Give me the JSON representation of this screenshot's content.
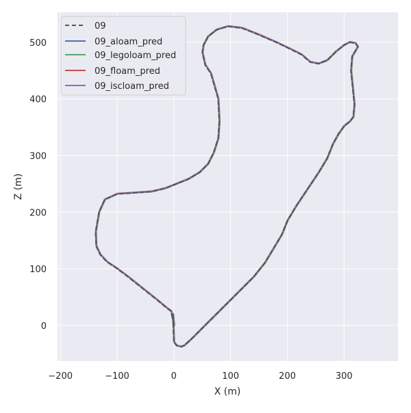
{
  "chart_data": {
    "type": "line",
    "title": "",
    "xlabel": "X (m)",
    "ylabel": "Z (m)",
    "xlim": [
      -205,
      395
    ],
    "ylim": [
      -63,
      553
    ],
    "xticks": [
      -200,
      -100,
      0,
      100,
      200,
      300
    ],
    "yticks": [
      0,
      100,
      200,
      300,
      400,
      500
    ],
    "grid": true,
    "legend_position": "top-left",
    "background_color": "#eaeaf2",
    "series": [
      {
        "name": "09",
        "style": "dashed",
        "color": "#555555",
        "x": [
          0,
          -2,
          0,
          5,
          12,
          18,
          30,
          50,
          80,
          110,
          140,
          160,
          175,
          190,
          200,
          215,
          235,
          255,
          270,
          280,
          290,
          300,
          310,
          316,
          318,
          315,
          312,
          314,
          320,
          324,
          320,
          310,
          300,
          285,
          270,
          255,
          240,
          225,
          205,
          180,
          150,
          120,
          95,
          75,
          60,
          52,
          50,
          55,
          65,
          78,
          80,
          78,
          70,
          60,
          45,
          25,
          5,
          -15,
          -40,
          -70,
          -100,
          -122,
          -132,
          -138,
          -137,
          -130,
          -118,
          -100,
          -80,
          -55,
          -30,
          -12,
          -5,
          0
        ],
        "y": [
          0,
          20,
          -30,
          -36,
          -38,
          -36,
          -25,
          -5,
          25,
          55,
          85,
          110,
          135,
          160,
          185,
          210,
          240,
          270,
          295,
          320,
          338,
          352,
          360,
          368,
          390,
          420,
          450,
          475,
          485,
          492,
          498,
          500,
          495,
          483,
          468,
          462,
          465,
          478,
          488,
          500,
          513,
          525,
          528,
          522,
          510,
          495,
          482,
          460,
          445,
          400,
          360,
          330,
          305,
          285,
          270,
          258,
          250,
          242,
          236,
          234,
          232,
          222,
          200,
          165,
          140,
          125,
          112,
          100,
          85,
          65,
          45,
          30,
          25,
          0
        ]
      },
      {
        "name": "09_aloam_pred",
        "style": "solid",
        "color": "#4c72b0",
        "x": [
          0,
          -2,
          0,
          5,
          12,
          18,
          30,
          50,
          80,
          110,
          140,
          160,
          175,
          190,
          200,
          215,
          235,
          255,
          270,
          280,
          290,
          300,
          310,
          316,
          318,
          315,
          312,
          314,
          320,
          324,
          320,
          310,
          300,
          285,
          270,
          255,
          240,
          225,
          205,
          180,
          150,
          120,
          95,
          75,
          60,
          52,
          50,
          55,
          65,
          78,
          80,
          78,
          70,
          60,
          45,
          25,
          5,
          -15,
          -40,
          -70,
          -100,
          -122,
          -132,
          -138,
          -137,
          -130,
          -118,
          -100,
          -80,
          -55,
          -30,
          -12,
          -5,
          0
        ],
        "y": [
          0,
          20,
          -30,
          -36,
          -38,
          -36,
          -25,
          -5,
          25,
          55,
          85,
          110,
          135,
          160,
          185,
          210,
          240,
          270,
          295,
          320,
          338,
          352,
          360,
          368,
          390,
          420,
          450,
          475,
          485,
          492,
          498,
          500,
          495,
          483,
          468,
          462,
          465,
          478,
          488,
          500,
          513,
          525,
          528,
          522,
          510,
          495,
          482,
          460,
          445,
          400,
          360,
          330,
          305,
          285,
          270,
          258,
          250,
          242,
          236,
          234,
          232,
          222,
          200,
          165,
          140,
          125,
          112,
          100,
          85,
          65,
          45,
          30,
          25,
          0
        ]
      },
      {
        "name": "09_legoloam_pred",
        "style": "solid",
        "color": "#55a868",
        "x": [
          0,
          -2,
          0,
          5,
          12,
          18,
          30,
          50,
          80,
          110,
          140,
          160,
          175,
          190,
          200,
          215,
          235,
          255,
          270,
          280,
          290,
          300,
          310,
          316,
          318,
          315,
          312,
          314,
          320,
          324,
          320,
          310,
          300,
          285,
          270,
          255,
          240,
          225,
          205,
          180,
          150,
          120,
          95,
          75,
          60,
          52,
          50,
          55,
          65,
          78,
          80,
          78,
          70,
          60,
          45,
          25,
          5,
          -15,
          -40,
          -70,
          -100,
          -122,
          -132,
          -138,
          -137,
          -130,
          -118,
          -100,
          -80,
          -55,
          -30,
          -12,
          -5,
          0
        ],
        "y": [
          0,
          20,
          -30,
          -36,
          -38,
          -36,
          -25,
          -5,
          25,
          55,
          85,
          110,
          135,
          160,
          185,
          210,
          240,
          270,
          295,
          320,
          338,
          352,
          360,
          368,
          390,
          420,
          450,
          475,
          485,
          492,
          498,
          500,
          495,
          483,
          468,
          462,
          465,
          478,
          488,
          500,
          513,
          525,
          528,
          522,
          510,
          495,
          482,
          460,
          445,
          400,
          360,
          330,
          305,
          285,
          270,
          258,
          250,
          242,
          236,
          234,
          232,
          222,
          200,
          165,
          140,
          125,
          112,
          100,
          85,
          65,
          45,
          30,
          25,
          0
        ]
      },
      {
        "name": "09_floam_pred",
        "style": "solid",
        "color": "#c44e52",
        "x": [
          0,
          -2,
          0,
          5,
          12,
          18,
          30,
          50,
          80,
          110,
          140,
          160,
          175,
          190,
          200,
          215,
          235,
          255,
          270,
          280,
          290,
          300,
          310,
          316,
          318,
          315,
          312,
          314,
          320,
          324,
          320,
          310,
          300,
          285,
          270,
          255,
          240,
          225,
          205,
          180,
          150,
          120,
          95,
          75,
          60,
          52,
          50,
          55,
          65,
          78,
          80,
          78,
          70,
          60,
          45,
          25,
          5,
          -15,
          -40,
          -70,
          -100,
          -122,
          -132,
          -138,
          -137,
          -130,
          -118,
          -100,
          -80,
          -55,
          -30,
          -12,
          -5,
          0
        ],
        "y": [
          0,
          20,
          -30,
          -36,
          -38,
          -36,
          -25,
          -5,
          25,
          55,
          85,
          110,
          135,
          160,
          185,
          210,
          240,
          270,
          295,
          320,
          338,
          352,
          360,
          368,
          390,
          420,
          450,
          475,
          485,
          492,
          498,
          500,
          495,
          483,
          468,
          462,
          465,
          478,
          488,
          500,
          513,
          525,
          528,
          522,
          510,
          495,
          482,
          460,
          445,
          400,
          360,
          330,
          305,
          285,
          270,
          258,
          250,
          242,
          236,
          234,
          232,
          222,
          200,
          165,
          140,
          125,
          112,
          100,
          85,
          65,
          45,
          30,
          25,
          0
        ]
      },
      {
        "name": "09_iscloam_pred",
        "style": "solid",
        "color": "#8172b3",
        "x": [
          0,
          -2,
          0,
          5,
          12,
          18,
          30,
          50,
          80,
          110,
          140,
          160,
          175,
          190,
          200,
          215,
          235,
          255,
          270,
          280,
          290,
          300,
          310,
          316,
          318,
          315,
          312,
          314,
          320,
          324,
          320,
          310,
          300,
          285,
          270,
          255,
          240,
          225,
          205,
          180,
          150,
          120,
          95,
          75,
          60,
          52,
          50,
          55,
          65,
          78,
          80,
          78,
          70,
          60,
          45,
          25,
          5,
          -15,
          -40,
          -70,
          -100,
          -122,
          -132,
          -138,
          -137,
          -130,
          -118,
          -100,
          -80,
          -55,
          -30,
          -12,
          -5,
          0
        ],
        "y": [
          0,
          20,
          -30,
          -36,
          -38,
          -36,
          -25,
          -5,
          25,
          55,
          85,
          110,
          135,
          160,
          185,
          210,
          240,
          270,
          295,
          320,
          338,
          352,
          360,
          368,
          390,
          420,
          450,
          475,
          485,
          492,
          498,
          500,
          495,
          483,
          468,
          462,
          465,
          478,
          488,
          500,
          513,
          525,
          528,
          522,
          510,
          495,
          482,
          460,
          445,
          400,
          360,
          330,
          305,
          285,
          270,
          258,
          250,
          242,
          236,
          234,
          232,
          222,
          200,
          165,
          140,
          125,
          112,
          100,
          85,
          65,
          45,
          30,
          25,
          0
        ]
      }
    ]
  }
}
